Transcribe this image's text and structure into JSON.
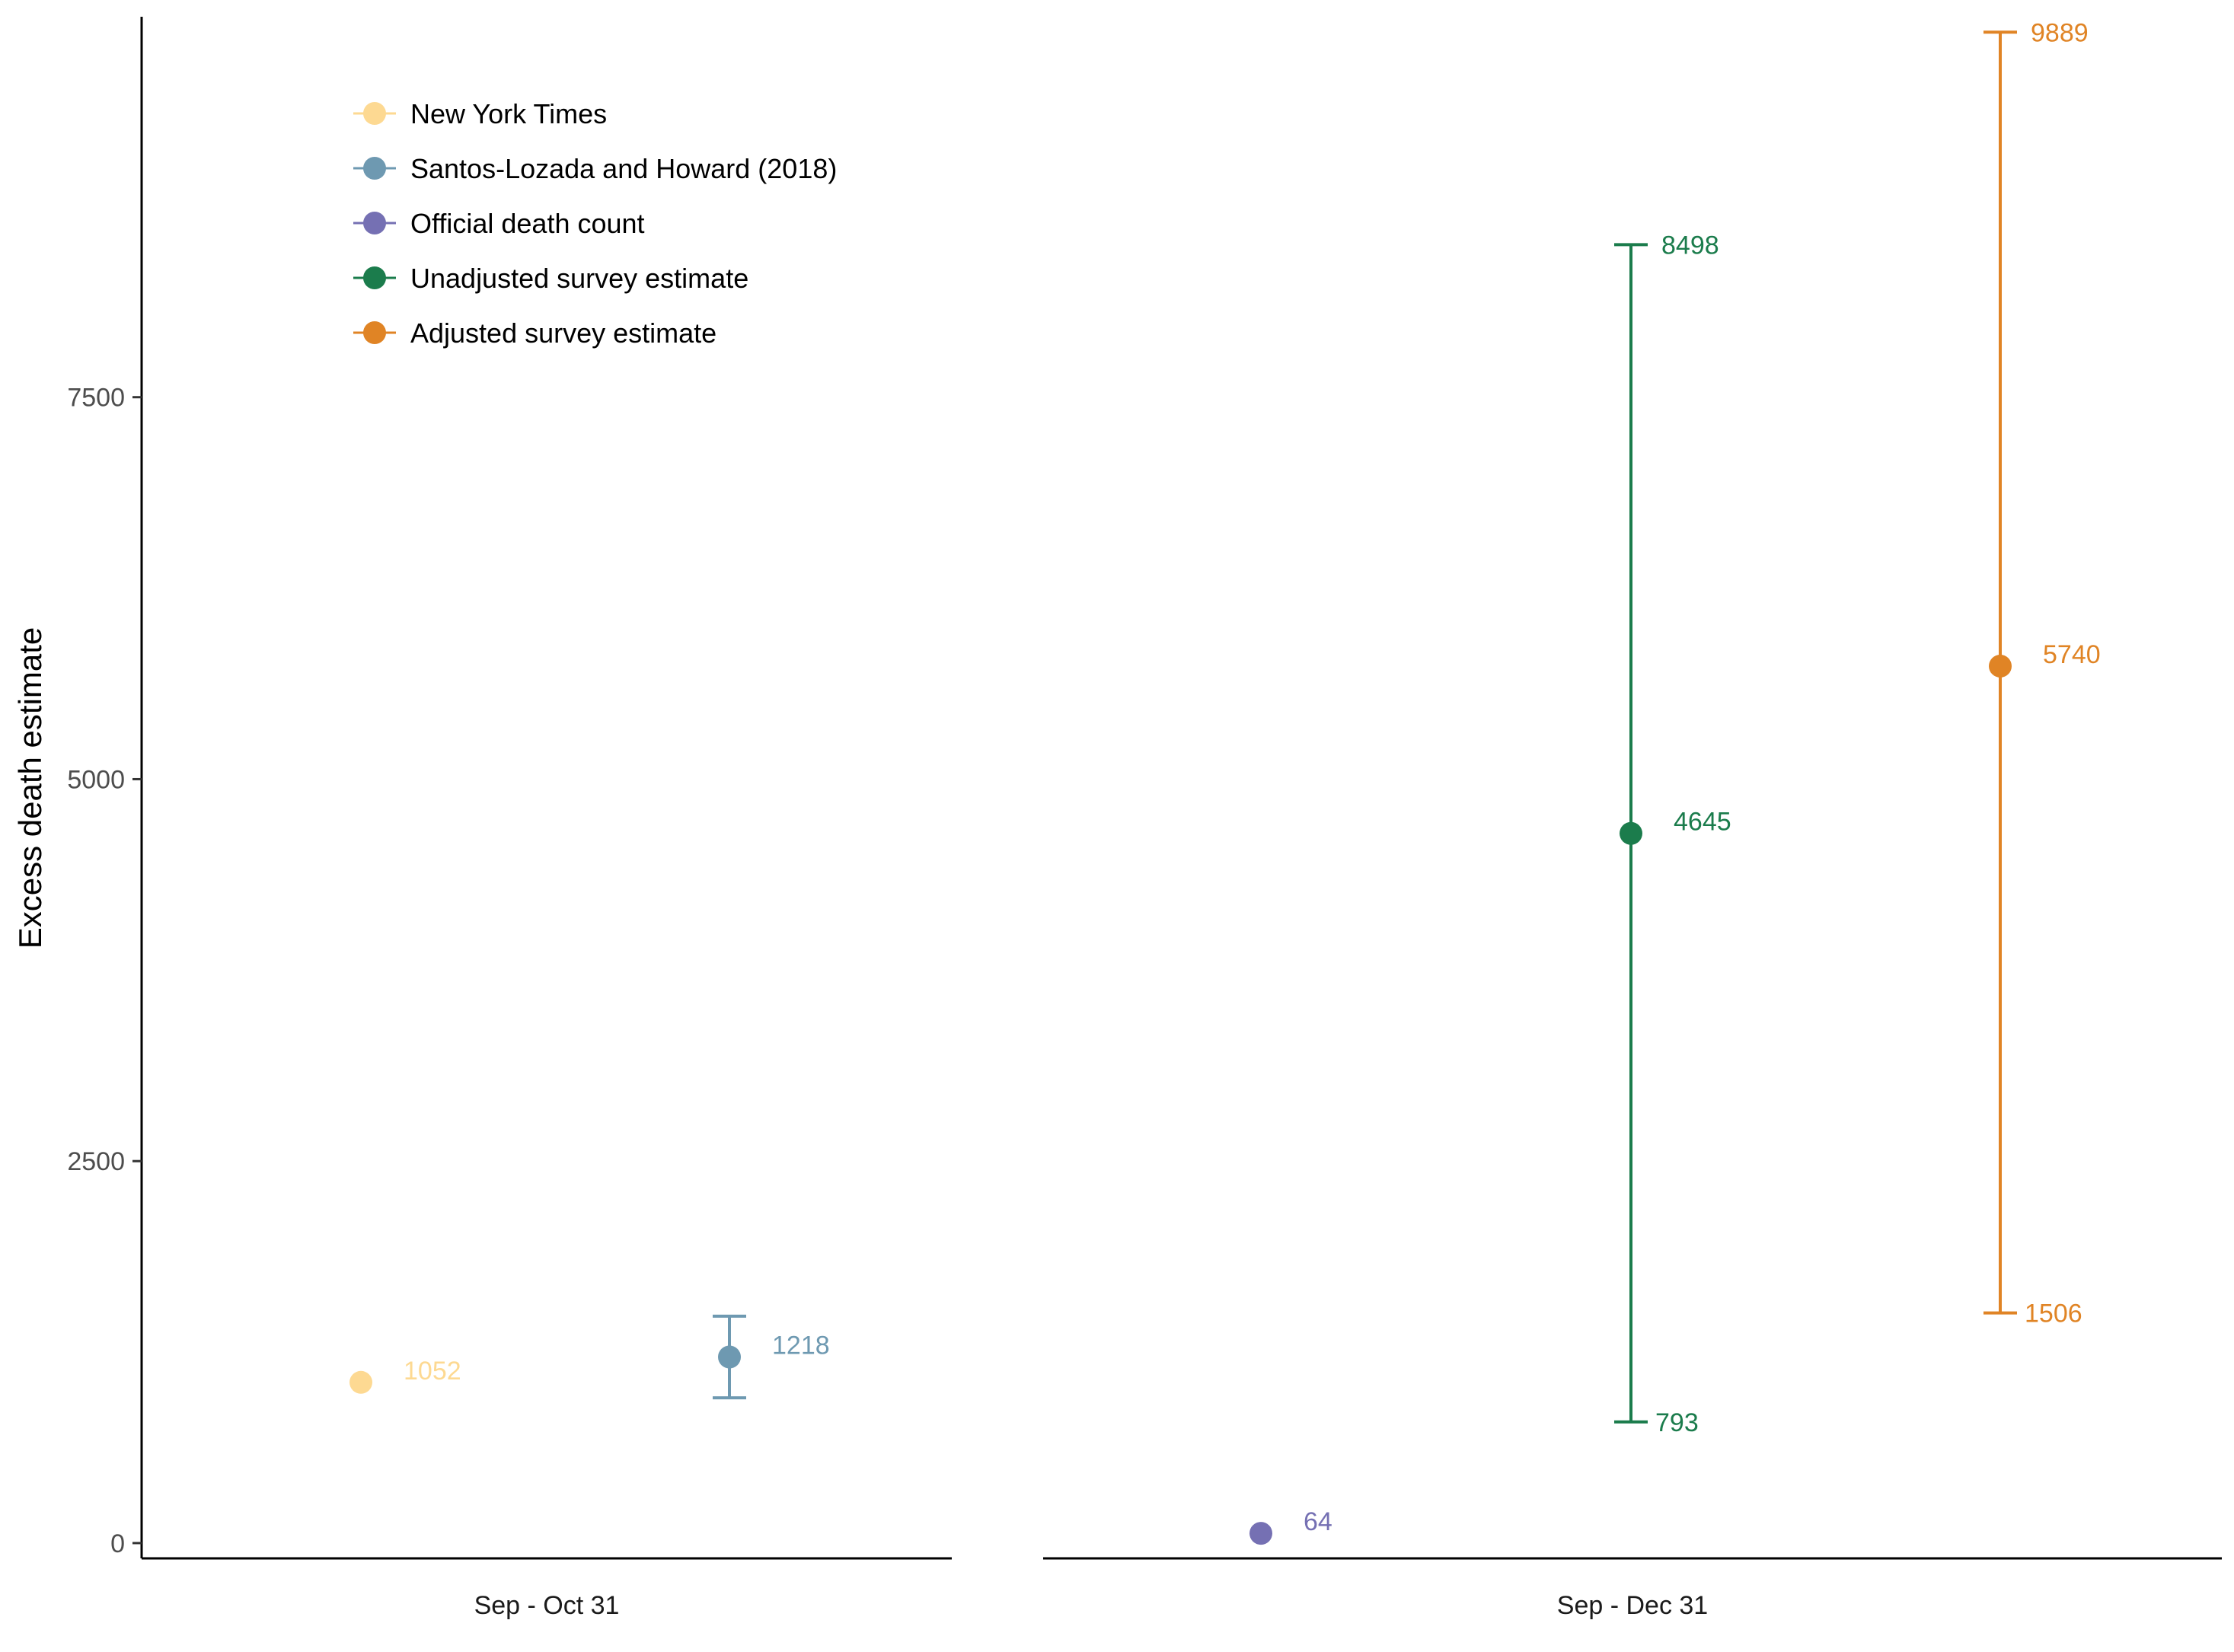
{
  "chart_data": {
    "type": "scatter",
    "title": "",
    "ylabel": "Excess death estimate",
    "xlabel": "",
    "ylim": [
      -100,
      9990
    ],
    "y_ticks": [
      0,
      2500,
      5000,
      7500
    ],
    "y_tick_labels": [
      "0",
      "2500",
      "5000",
      "7500"
    ],
    "grid": false,
    "legend_position": "top-left",
    "panels": [
      {
        "label": "Sep - Oct 31",
        "series": [
          "New York Times",
          "Santos-Lozada and Howard (2018)"
        ]
      },
      {
        "label": "Sep - Dec 31",
        "series": [
          "Official death count",
          "Unadjusted survey estimate",
          "Adjusted survey estimate"
        ]
      }
    ],
    "series": [
      {
        "name": "New York Times",
        "panel": 0,
        "color": "#FDD992",
        "value": 1052,
        "value_label": "1052",
        "low": null,
        "high": null,
        "low_label": "",
        "high_label": ""
      },
      {
        "name": "Santos-Lozada and Howard (2018)",
        "panel": 0,
        "color": "#6E99B1",
        "value": 1218,
        "value_label": "1218",
        "low": 951,
        "high": 1485,
        "low_label": "",
        "high_label": ""
      },
      {
        "name": "Official death count",
        "panel": 1,
        "color": "#7570B3",
        "value": 64,
        "value_label": "64",
        "low": null,
        "high": null,
        "low_label": "",
        "high_label": ""
      },
      {
        "name": "Unadjusted survey estimate",
        "panel": 1,
        "color": "#1B7C4C",
        "value": 4645,
        "value_label": "4645",
        "low": 793,
        "high": 8498,
        "low_label": "793",
        "high_label": "8498"
      },
      {
        "name": "Adjusted survey estimate",
        "panel": 1,
        "color": "#E08425",
        "value": 5740,
        "value_label": "5740",
        "low": 1506,
        "high": 9889,
        "low_label": "1506",
        "high_label": "9889"
      }
    ]
  }
}
